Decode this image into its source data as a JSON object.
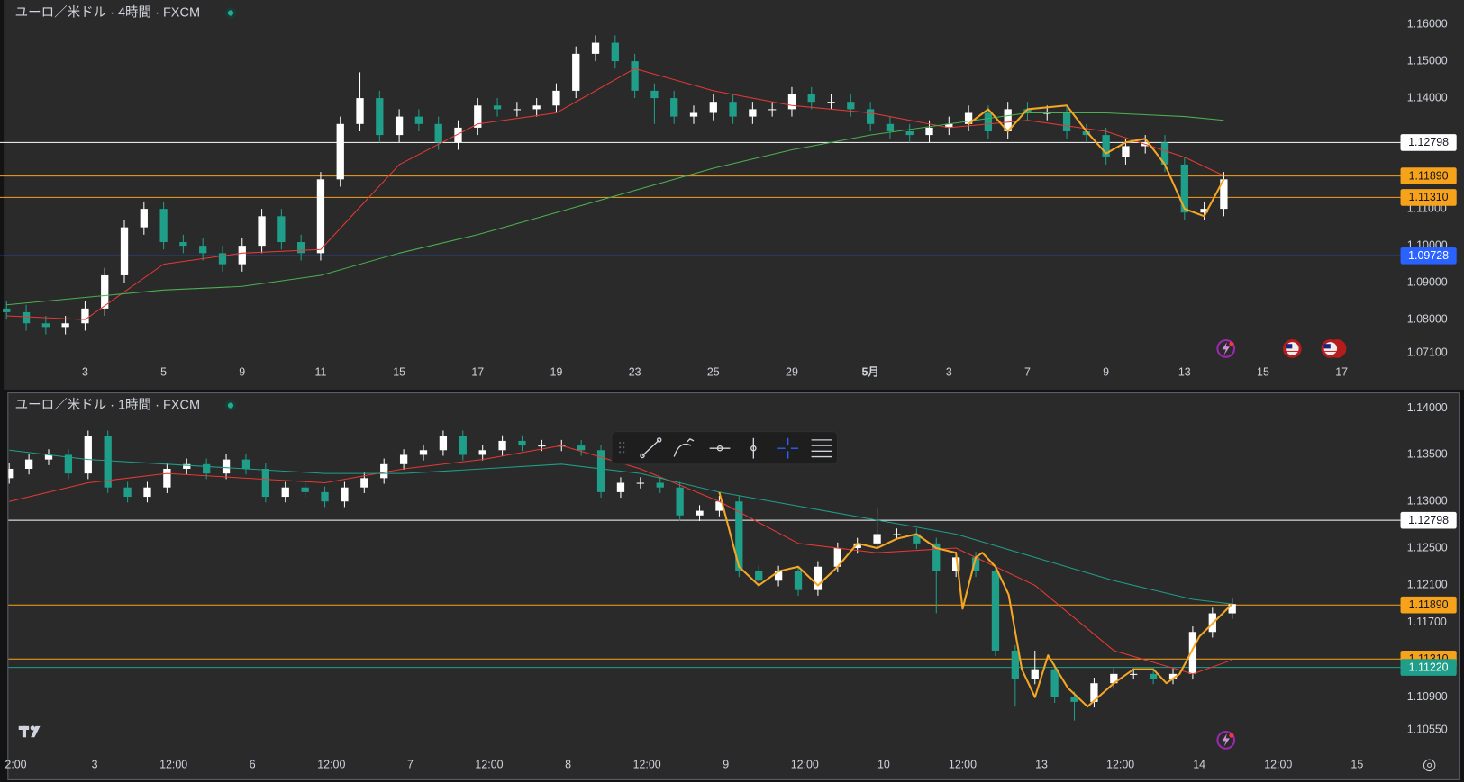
{
  "chart_data": [
    {
      "type": "candlestick",
      "title": "ユーロ／米ドル · 4時間 · FXCM",
      "up_color": "#ffffff",
      "down_color": "#1f9e89",
      "xlim": [
        -1,
        213
      ],
      "ylim": [
        1.0676,
        1.1666
      ],
      "xticks": [
        {
          "value": 12,
          "label": "3"
        },
        {
          "value": 24,
          "label": "5"
        },
        {
          "value": 36,
          "label": "9"
        },
        {
          "value": 48,
          "label": "11"
        },
        {
          "value": 60,
          "label": "15"
        },
        {
          "value": 72,
          "label": "17"
        },
        {
          "value": 84,
          "label": "19"
        },
        {
          "value": 96,
          "label": "23"
        },
        {
          "value": 108,
          "label": "25"
        },
        {
          "value": 120,
          "label": "29"
        },
        {
          "value": 132,
          "label": "5月"
        },
        {
          "value": 144,
          "label": "3"
        },
        {
          "value": 156,
          "label": "7"
        },
        {
          "value": 168,
          "label": "9"
        },
        {
          "value": 180,
          "label": "13"
        },
        {
          "value": 192,
          "label": "15"
        },
        {
          "value": 204,
          "label": "17"
        }
      ],
      "yticks": [
        {
          "value": 1.16,
          "label": "1.16000"
        },
        {
          "value": 1.15,
          "label": "1.15000"
        },
        {
          "value": 1.14,
          "label": "1.14000"
        },
        {
          "value": 1.11,
          "label": "1.11000"
        },
        {
          "value": 1.1,
          "label": "1.10000"
        },
        {
          "value": 1.09,
          "label": "1.09000"
        },
        {
          "value": 1.08,
          "label": "1.08000"
        },
        {
          "value": 1.071,
          "label": "1.07100"
        }
      ],
      "x": [
        0,
        3,
        6,
        9,
        12,
        15,
        18,
        21,
        24,
        27,
        30,
        33,
        36,
        39,
        42,
        45,
        48,
        51,
        54,
        57,
        60,
        63,
        66,
        69,
        72,
        75,
        78,
        81,
        84,
        87,
        90,
        93,
        96,
        99,
        102,
        105,
        108,
        111,
        114,
        117,
        120,
        123,
        126,
        129,
        132,
        135,
        138,
        141,
        144,
        147,
        150,
        153,
        156,
        159,
        162,
        165,
        168,
        171,
        174,
        177,
        180,
        183,
        186
      ],
      "open": [
        1.083,
        1.082,
        1.079,
        1.078,
        1.079,
        1.083,
        1.092,
        1.105,
        1.11,
        1.101,
        1.1,
        1.098,
        1.095,
        1.1,
        1.108,
        1.101,
        1.098,
        1.118,
        1.133,
        1.14,
        1.13,
        1.135,
        1.133,
        1.128,
        1.132,
        1.138,
        1.137,
        1.137,
        1.138,
        1.142,
        1.152,
        1.155,
        1.15,
        1.142,
        1.14,
        1.135,
        1.136,
        1.139,
        1.135,
        1.137,
        1.137,
        1.141,
        1.139,
        1.139,
        1.137,
        1.133,
        1.131,
        1.13,
        1.132,
        1.133,
        1.136,
        1.131,
        1.137,
        1.136,
        1.136,
        1.131,
        1.13,
        1.124,
        1.127,
        1.128,
        1.122,
        1.109,
        1.11
      ],
      "high": [
        1.085,
        1.084,
        1.081,
        1.081,
        1.085,
        1.094,
        1.107,
        1.112,
        1.112,
        1.103,
        1.102,
        1.1,
        1.102,
        1.11,
        1.11,
        1.103,
        1.12,
        1.135,
        1.147,
        1.142,
        1.137,
        1.137,
        1.135,
        1.134,
        1.14,
        1.14,
        1.139,
        1.14,
        1.144,
        1.154,
        1.157,
        1.157,
        1.152,
        1.144,
        1.142,
        1.138,
        1.141,
        1.141,
        1.139,
        1.139,
        1.143,
        1.143,
        1.141,
        1.141,
        1.139,
        1.135,
        1.133,
        1.134,
        1.135,
        1.138,
        1.138,
        1.139,
        1.139,
        1.138,
        1.138,
        1.133,
        1.132,
        1.129,
        1.13,
        1.13,
        1.124,
        1.112,
        1.12
      ],
      "low": [
        1.08,
        1.077,
        1.076,
        1.076,
        1.077,
        1.081,
        1.09,
        1.103,
        1.099,
        1.098,
        1.096,
        1.093,
        1.093,
        1.098,
        1.099,
        1.096,
        1.096,
        1.116,
        1.131,
        1.128,
        1.128,
        1.131,
        1.126,
        1.126,
        1.13,
        1.135,
        1.135,
        1.135,
        1.136,
        1.14,
        1.15,
        1.148,
        1.14,
        1.133,
        1.133,
        1.133,
        1.134,
        1.133,
        1.133,
        1.135,
        1.135,
        1.137,
        1.137,
        1.135,
        1.131,
        1.129,
        1.128,
        1.128,
        1.13,
        1.131,
        1.129,
        1.129,
        1.134,
        1.134,
        1.129,
        1.128,
        1.122,
        1.122,
        1.125,
        1.12,
        1.107,
        1.107,
        1.108
      ],
      "close": [
        1.082,
        1.079,
        1.078,
        1.079,
        1.083,
        1.092,
        1.105,
        1.11,
        1.101,
        1.1,
        1.098,
        1.095,
        1.1,
        1.108,
        1.101,
        1.098,
        1.118,
        1.133,
        1.14,
        1.13,
        1.135,
        1.133,
        1.128,
        1.132,
        1.138,
        1.137,
        1.137,
        1.138,
        1.142,
        1.152,
        1.155,
        1.15,
        1.142,
        1.14,
        1.135,
        1.136,
        1.139,
        1.135,
        1.137,
        1.137,
        1.141,
        1.139,
        1.139,
        1.137,
        1.133,
        1.131,
        1.13,
        1.132,
        1.133,
        1.136,
        1.131,
        1.137,
        1.136,
        1.136,
        1.131,
        1.13,
        1.124,
        1.127,
        1.128,
        1.122,
        1.109,
        1.11,
        1.118
      ],
      "series": [
        {
          "color": "#e53935",
          "x": [
            0,
            12,
            24,
            36,
            48,
            60,
            72,
            84,
            96,
            108,
            120,
            132,
            144,
            156,
            168,
            180,
            186
          ],
          "values": [
            1.081,
            1.08,
            1.095,
            1.098,
            1.099,
            1.122,
            1.133,
            1.136,
            1.148,
            1.142,
            1.138,
            1.136,
            1.132,
            1.134,
            1.131,
            1.124,
            1.119
          ]
        },
        {
          "color": "#4caf50",
          "x": [
            0,
            12,
            24,
            36,
            48,
            60,
            72,
            84,
            96,
            108,
            120,
            132,
            144,
            156,
            168,
            180,
            186
          ],
          "values": [
            1.084,
            1.086,
            1.088,
            1.089,
            1.092,
            1.098,
            1.103,
            1.109,
            1.115,
            1.121,
            1.126,
            1.13,
            1.133,
            1.136,
            1.136,
            1.135,
            1.134
          ]
        },
        {
          "color": "#f5a623",
          "x": [
            147,
            150,
            153,
            156,
            162,
            165,
            168,
            171,
            174,
            177,
            180,
            183,
            186
          ],
          "values": [
            1.133,
            1.137,
            1.131,
            1.137,
            1.138,
            1.131,
            1.125,
            1.128,
            1.129,
            1.122,
            1.11,
            1.108,
            1.118
          ]
        }
      ],
      "hlines": [
        {
          "value": 1.12798,
          "label": "1.12798",
          "color": "#ffffff",
          "text_color": "#131722"
        },
        {
          "value": 1.1189,
          "label": "1.11890",
          "color": "#f7a21b",
          "text_color": "#131722"
        },
        {
          "value": 1.1131,
          "label": "1.11310",
          "color": "#f7a21b",
          "text_color": "#131722"
        },
        {
          "value": 1.09728,
          "label": "1.09728",
          "color": "#2962ff",
          "text_color": "#ffffff"
        }
      ]
    },
    {
      "type": "candlestick",
      "title": "ユーロ／米ドル · 1時間 · FXCM",
      "up_color": "#ffffff",
      "down_color": "#1f9e89",
      "xlim": [
        -1.4,
        211.6
      ],
      "ylim": [
        1.1032,
        1.1416
      ],
      "xticks": [
        {
          "value": 1,
          "label": "2:00"
        },
        {
          "value": 13,
          "label": "3"
        },
        {
          "value": 25,
          "label": "12:00"
        },
        {
          "value": 37,
          "label": "6"
        },
        {
          "value": 49,
          "label": "12:00"
        },
        {
          "value": 61,
          "label": "7"
        },
        {
          "value": 73,
          "label": "12:00"
        },
        {
          "value": 85,
          "label": "8"
        },
        {
          "value": 97,
          "label": "12:00"
        },
        {
          "value": 109,
          "label": "9"
        },
        {
          "value": 121,
          "label": "12:00"
        },
        {
          "value": 133,
          "label": "10"
        },
        {
          "value": 145,
          "label": "12:00"
        },
        {
          "value": 157,
          "label": "13"
        },
        {
          "value": 169,
          "label": "12:00"
        },
        {
          "value": 181,
          "label": "14"
        },
        {
          "value": 193,
          "label": "12:00"
        },
        {
          "value": 205,
          "label": "15"
        }
      ],
      "yticks": [
        {
          "value": 1.14,
          "label": "1.14000"
        },
        {
          "value": 1.135,
          "label": "1.13500"
        },
        {
          "value": 1.13,
          "label": "1.13000"
        },
        {
          "value": 1.125,
          "label": "1.12500"
        },
        {
          "value": 1.121,
          "label": "1.12100"
        },
        {
          "value": 1.117,
          "label": "1.11700"
        },
        {
          "value": 1.109,
          "label": "1.10900"
        },
        {
          "value": 1.1055,
          "label": "1.10550"
        }
      ],
      "x": [
        0,
        3,
        6,
        9,
        12,
        15,
        18,
        21,
        24,
        27,
        30,
        33,
        36,
        39,
        42,
        45,
        48,
        51,
        54,
        57,
        60,
        63,
        66,
        69,
        72,
        75,
        78,
        81,
        84,
        87,
        90,
        93,
        96,
        99,
        102,
        105,
        108,
        111,
        114,
        117,
        120,
        123,
        126,
        129,
        132,
        135,
        138,
        141,
        144,
        147,
        150,
        153,
        156,
        159,
        162,
        165,
        168,
        171,
        174,
        177,
        180,
        183,
        186
      ],
      "open": [
        1.1325,
        1.1335,
        1.1345,
        1.135,
        1.133,
        1.137,
        1.1315,
        1.1305,
        1.1315,
        1.1335,
        1.134,
        1.133,
        1.1345,
        1.1335,
        1.1305,
        1.1315,
        1.131,
        1.13,
        1.1315,
        1.1325,
        1.134,
        1.135,
        1.1355,
        1.137,
        1.135,
        1.1355,
        1.1365,
        1.136,
        1.136,
        1.136,
        1.1355,
        1.131,
        1.132,
        1.132,
        1.1315,
        1.1285,
        1.129,
        1.13,
        1.1225,
        1.1215,
        1.1225,
        1.1205,
        1.123,
        1.125,
        1.1255,
        1.1265,
        1.1265,
        1.1255,
        1.1225,
        1.124,
        1.1225,
        1.114,
        1.111,
        1.112,
        1.109,
        1.1085,
        1.1105,
        1.1115,
        1.1115,
        1.111,
        1.1115,
        1.116,
        1.118
      ],
      "high": [
        1.1341,
        1.1351,
        1.1356,
        1.1356,
        1.1376,
        1.1376,
        1.1321,
        1.1321,
        1.1341,
        1.1346,
        1.1346,
        1.1351,
        1.1351,
        1.1341,
        1.1321,
        1.1321,
        1.1316,
        1.1321,
        1.1331,
        1.1346,
        1.1356,
        1.1361,
        1.1376,
        1.1376,
        1.1361,
        1.1371,
        1.1371,
        1.1366,
        1.1366,
        1.1366,
        1.1361,
        1.1326,
        1.1326,
        1.1326,
        1.1321,
        1.1296,
        1.1306,
        1.1306,
        1.1231,
        1.1231,
        1.1231,
        1.1236,
        1.1256,
        1.1261,
        1.1293,
        1.1271,
        1.1271,
        1.1261,
        1.1246,
        1.1246,
        1.1231,
        1.1146,
        1.114,
        1.1126,
        1.1096,
        1.1111,
        1.1121,
        1.1121,
        1.1121,
        1.1121,
        1.1166,
        1.1186,
        1.1196
      ],
      "low": [
        1.1319,
        1.1329,
        1.1339,
        1.1324,
        1.1324,
        1.1309,
        1.1299,
        1.1299,
        1.1309,
        1.1329,
        1.1324,
        1.1324,
        1.1329,
        1.1299,
        1.1299,
        1.1304,
        1.1294,
        1.1294,
        1.1309,
        1.1319,
        1.1334,
        1.1344,
        1.1349,
        1.1344,
        1.1344,
        1.1349,
        1.1354,
        1.1354,
        1.1354,
        1.1349,
        1.1304,
        1.1304,
        1.1314,
        1.1309,
        1.1279,
        1.1279,
        1.1284,
        1.1219,
        1.1209,
        1.1209,
        1.1199,
        1.1199,
        1.1224,
        1.1244,
        1.1249,
        1.1259,
        1.1249,
        1.118,
        1.1219,
        1.1219,
        1.1134,
        1.108,
        1.1104,
        1.1084,
        1.1065,
        1.1079,
        1.1099,
        1.1109,
        1.1104,
        1.1104,
        1.1109,
        1.1154,
        1.1174
      ],
      "close": [
        1.1335,
        1.1345,
        1.135,
        1.133,
        1.137,
        1.1315,
        1.1305,
        1.1315,
        1.1335,
        1.134,
        1.133,
        1.1345,
        1.1335,
        1.1305,
        1.1315,
        1.131,
        1.13,
        1.1315,
        1.1325,
        1.134,
        1.135,
        1.1355,
        1.137,
        1.135,
        1.1355,
        1.1365,
        1.136,
        1.136,
        1.136,
        1.1355,
        1.131,
        1.132,
        1.132,
        1.1315,
        1.1285,
        1.129,
        1.13,
        1.1225,
        1.1215,
        1.1225,
        1.1205,
        1.123,
        1.125,
        1.1255,
        1.1265,
        1.1265,
        1.1255,
        1.1225,
        1.124,
        1.1225,
        1.114,
        1.111,
        1.112,
        1.109,
        1.1085,
        1.1105,
        1.1115,
        1.1115,
        1.111,
        1.1115,
        1.116,
        1.118,
        1.119
      ],
      "series": [
        {
          "color": "#e53935",
          "x": [
            0,
            12,
            24,
            36,
            48,
            60,
            72,
            84,
            96,
            108,
            120,
            132,
            144,
            156,
            168,
            180,
            186
          ],
          "values": [
            1.13,
            1.132,
            1.133,
            1.1325,
            1.132,
            1.1335,
            1.1345,
            1.136,
            1.1335,
            1.13,
            1.1255,
            1.1245,
            1.125,
            1.121,
            1.114,
            1.1115,
            1.113
          ]
        },
        {
          "color": "#1f9e89",
          "x": [
            0,
            12,
            24,
            36,
            48,
            60,
            72,
            84,
            96,
            108,
            120,
            132,
            144,
            156,
            168,
            180,
            186
          ],
          "values": [
            1.1355,
            1.1345,
            1.134,
            1.1335,
            1.133,
            1.133,
            1.1335,
            1.134,
            1.133,
            1.131,
            1.1295,
            1.128,
            1.1265,
            1.124,
            1.1215,
            1.1195,
            1.119
          ]
        },
        {
          "color": "#f5a623",
          "x": [
            108,
            111,
            114,
            117,
            120,
            123,
            126,
            129,
            132,
            135,
            138,
            141,
            144,
            145,
            147,
            148,
            150,
            152,
            154,
            156,
            158,
            161,
            164,
            168,
            171,
            174,
            176,
            178,
            181,
            186
          ],
          "values": [
            1.131,
            1.123,
            1.121,
            1.1225,
            1.123,
            1.121,
            1.123,
            1.1255,
            1.125,
            1.126,
            1.1265,
            1.125,
            1.1245,
            1.1185,
            1.124,
            1.1245,
            1.123,
            1.12,
            1.112,
            1.109,
            1.1135,
            1.11,
            1.108,
            1.1105,
            1.112,
            1.112,
            1.1105,
            1.1115,
            1.1155,
            1.119
          ]
        }
      ],
      "hlines": [
        {
          "value": 1.12798,
          "label": "1.12798",
          "color": "#ffffff",
          "text_color": "#131722"
        },
        {
          "value": 1.1189,
          "label": "1.11890",
          "color": "#f7a21b",
          "text_color": "#131722"
        },
        {
          "value": 1.1131,
          "label": "1.11310",
          "color": "#f7a21b",
          "text_color": "#131722"
        },
        {
          "value": 1.1122,
          "label": "1.11220",
          "color": "#1f9e89",
          "text_color": "#ffffff"
        }
      ]
    }
  ]
}
